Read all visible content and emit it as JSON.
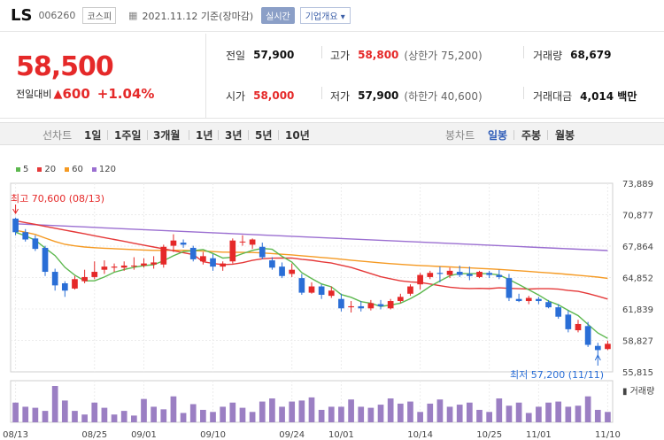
{
  "header": {
    "name": "LS",
    "code": "006260",
    "market": "코스피",
    "date": "2021.11.12 기준(장마감)",
    "realtime_btn": "실시간",
    "company_btn": "기업개요 ▾"
  },
  "quote": {
    "price": "58,500",
    "change_label": "전일대비",
    "change": "600",
    "change_pct": "+1.04%",
    "prev_close": {
      "label": "전일",
      "value": "57,900"
    },
    "open": {
      "label": "시가",
      "value": "58,000"
    },
    "high": {
      "label": "고가",
      "value": "58,800",
      "sub": "(상한가 75,200)"
    },
    "low": {
      "label": "저가",
      "value": "57,900",
      "sub": "(하한가 40,600)"
    },
    "volume": {
      "label": "거래량",
      "value": "68,679"
    },
    "amount": {
      "label": "거래대금",
      "value": "4,014 백만"
    },
    "colors": {
      "up": "#e52929",
      "down": "#2a6ed6"
    }
  },
  "period_tabs": {
    "label": "선차트",
    "items": [
      "1일",
      "1주일",
      "3개월",
      "1년",
      "3년",
      "5년",
      "10년"
    ]
  },
  "candle_tabs": {
    "label": "봉차트",
    "items": [
      "일봉",
      "주봉",
      "월봉"
    ],
    "selected": "일봉"
  },
  "chart_data": {
    "type": "candlestick",
    "legend": [
      {
        "name": "5",
        "color": "#5db84f"
      },
      {
        "name": "20",
        "color": "#e53939"
      },
      {
        "name": "60",
        "color": "#f59a23"
      },
      {
        "name": "120",
        "color": "#9b6fd1"
      }
    ],
    "y_ticks": [
      "73,889",
      "70,877",
      "67,864",
      "64,852",
      "61,839",
      "58,827",
      "55,815"
    ],
    "y_min": 55815,
    "y_max": 73889,
    "x_ticks": [
      {
        "label": "08/13",
        "i": 0
      },
      {
        "label": "08/25",
        "i": 8
      },
      {
        "label": "09/01",
        "i": 13
      },
      {
        "label": "09/10",
        "i": 20
      },
      {
        "label": "09/24",
        "i": 28
      },
      {
        "label": "10/01",
        "i": 33
      },
      {
        "label": "10/14",
        "i": 41
      },
      {
        "label": "10/25",
        "i": 48
      },
      {
        "label": "11/01",
        "i": 53
      },
      {
        "label": "11/10",
        "i": 60
      }
    ],
    "high_annotation": "최고 70,600 (08/13)",
    "low_annotation": "최저 57,200 (11/11)",
    "volume_label": "거래량",
    "candles": [
      {
        "o": 70500,
        "h": 70600,
        "l": 68900,
        "c": 69200
      },
      {
        "o": 69200,
        "h": 69500,
        "l": 68300,
        "c": 68500
      },
      {
        "o": 68600,
        "h": 68900,
        "l": 67400,
        "c": 67600
      },
      {
        "o": 67700,
        "h": 67900,
        "l": 65000,
        "c": 65400
      },
      {
        "o": 65400,
        "h": 65700,
        "l": 63600,
        "c": 64100
      },
      {
        "o": 64300,
        "h": 64500,
        "l": 63000,
        "c": 63600
      },
      {
        "o": 63800,
        "h": 65000,
        "l": 63700,
        "c": 64700
      },
      {
        "o": 64500,
        "h": 65600,
        "l": 64300,
        "c": 64900
      },
      {
        "o": 64900,
        "h": 66400,
        "l": 64700,
        "c": 65400
      },
      {
        "o": 65600,
        "h": 66500,
        "l": 65200,
        "c": 65900
      },
      {
        "o": 65800,
        "h": 66200,
        "l": 65400,
        "c": 65900
      },
      {
        "o": 65800,
        "h": 66400,
        "l": 65500,
        "c": 66000
      },
      {
        "o": 66000,
        "h": 66800,
        "l": 65600,
        "c": 66000
      },
      {
        "o": 66000,
        "h": 66700,
        "l": 65800,
        "c": 66200
      },
      {
        "o": 66100,
        "h": 66900,
        "l": 65700,
        "c": 66300
      },
      {
        "o": 66100,
        "h": 68000,
        "l": 65800,
        "c": 67800
      },
      {
        "o": 67900,
        "h": 69000,
        "l": 67300,
        "c": 68400
      },
      {
        "o": 68200,
        "h": 68500,
        "l": 67700,
        "c": 68000
      },
      {
        "o": 67700,
        "h": 67900,
        "l": 66400,
        "c": 66600
      },
      {
        "o": 66400,
        "h": 67300,
        "l": 66100,
        "c": 66900
      },
      {
        "o": 66700,
        "h": 67100,
        "l": 65500,
        "c": 65900
      },
      {
        "o": 65900,
        "h": 66400,
        "l": 65500,
        "c": 66200
      },
      {
        "o": 66400,
        "h": 68600,
        "l": 66200,
        "c": 68400
      },
      {
        "o": 68300,
        "h": 68900,
        "l": 67900,
        "c": 68300
      },
      {
        "o": 68000,
        "h": 68600,
        "l": 67600,
        "c": 68500
      },
      {
        "o": 67800,
        "h": 68200,
        "l": 66600,
        "c": 66800
      },
      {
        "o": 66500,
        "h": 66800,
        "l": 65600,
        "c": 65800
      },
      {
        "o": 65900,
        "h": 66300,
        "l": 64800,
        "c": 65000
      },
      {
        "o": 65200,
        "h": 66200,
        "l": 64900,
        "c": 65600
      },
      {
        "o": 64800,
        "h": 65200,
        "l": 63200,
        "c": 63400
      },
      {
        "o": 63400,
        "h": 64400,
        "l": 63300,
        "c": 64000
      },
      {
        "o": 64000,
        "h": 64200,
        "l": 62800,
        "c": 63200
      },
      {
        "o": 63100,
        "h": 64000,
        "l": 62900,
        "c": 63600
      },
      {
        "o": 62800,
        "h": 63300,
        "l": 61600,
        "c": 61900
      },
      {
        "o": 62000,
        "h": 62600,
        "l": 61500,
        "c": 62100
      },
      {
        "o": 62100,
        "h": 62600,
        "l": 61600,
        "c": 61900
      },
      {
        "o": 61900,
        "h": 62700,
        "l": 61700,
        "c": 62400
      },
      {
        "o": 62300,
        "h": 62700,
        "l": 61800,
        "c": 62100
      },
      {
        "o": 61900,
        "h": 62800,
        "l": 61800,
        "c": 62600
      },
      {
        "o": 62600,
        "h": 63300,
        "l": 62400,
        "c": 63000
      },
      {
        "o": 63300,
        "h": 64200,
        "l": 63100,
        "c": 64000
      },
      {
        "o": 64200,
        "h": 65300,
        "l": 63700,
        "c": 65100
      },
      {
        "o": 64900,
        "h": 65500,
        "l": 64700,
        "c": 65300
      },
      {
        "o": 65300,
        "h": 65900,
        "l": 64400,
        "c": 65200
      },
      {
        "o": 65100,
        "h": 65800,
        "l": 64800,
        "c": 65500
      },
      {
        "o": 65400,
        "h": 66000,
        "l": 64900,
        "c": 65100
      },
      {
        "o": 65200,
        "h": 65900,
        "l": 64600,
        "c": 65000
      },
      {
        "o": 64900,
        "h": 65500,
        "l": 64800,
        "c": 65400
      },
      {
        "o": 65300,
        "h": 65500,
        "l": 64800,
        "c": 65100
      },
      {
        "o": 65100,
        "h": 65600,
        "l": 64700,
        "c": 64900
      },
      {
        "o": 64800,
        "h": 65200,
        "l": 62600,
        "c": 62900
      },
      {
        "o": 62800,
        "h": 63300,
        "l": 62500,
        "c": 62600
      },
      {
        "o": 62600,
        "h": 63100,
        "l": 62300,
        "c": 62900
      },
      {
        "o": 62800,
        "h": 63000,
        "l": 62300,
        "c": 62600
      },
      {
        "o": 62500,
        "h": 62700,
        "l": 61900,
        "c": 62000
      },
      {
        "o": 62000,
        "h": 62300,
        "l": 60900,
        "c": 61100
      },
      {
        "o": 61300,
        "h": 61700,
        "l": 59600,
        "c": 59900
      },
      {
        "o": 59800,
        "h": 60800,
        "l": 59600,
        "c": 60400
      },
      {
        "o": 60200,
        "h": 60600,
        "l": 58200,
        "c": 58400
      },
      {
        "o": 58300,
        "h": 58600,
        "l": 57200,
        "c": 57900
      },
      {
        "o": 58000,
        "h": 58800,
        "l": 57900,
        "c": 58500
      }
    ],
    "volumes": [
      38,
      30,
      28,
      22,
      70,
      42,
      22,
      15,
      38,
      28,
      15,
      22,
      13,
      45,
      30,
      25,
      50,
      18,
      35,
      24,
      20,
      30,
      38,
      28,
      20,
      40,
      46,
      30,
      40,
      42,
      48,
      24,
      30,
      30,
      44,
      30,
      28,
      34,
      46,
      36,
      40,
      20,
      36,
      44,
      30,
      34,
      38,
      24,
      20,
      46,
      32,
      38,
      18,
      30,
      38,
      40,
      30,
      32,
      50,
      24,
      20
    ]
  }
}
